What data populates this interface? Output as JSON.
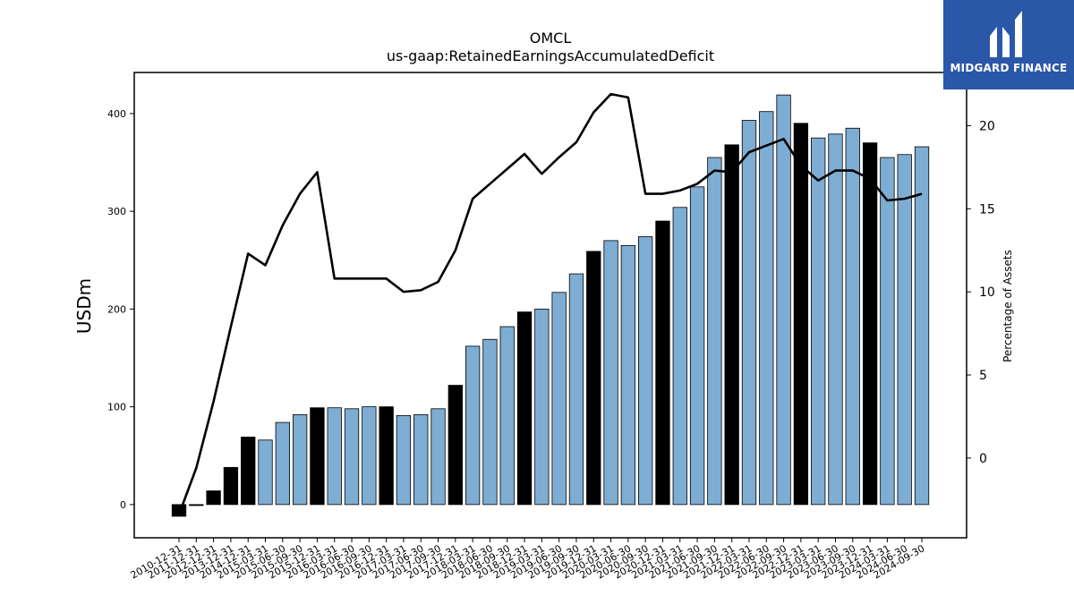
{
  "chart_data": {
    "type": "bar",
    "title": "OMCL",
    "subtitle": "us-gaap:RetainedEarningsAccumulatedDeficit",
    "ylabel": "USDm",
    "y2label": "Percentage of Assets",
    "ylim": [
      -34,
      442
    ],
    "y2lim": [
      -4.8,
      23.2
    ],
    "yticks": [
      0,
      100,
      200,
      300,
      400
    ],
    "y2ticks": [
      0,
      5,
      10,
      15,
      20
    ],
    "grid": false,
    "legend": "none",
    "colors": {
      "bar": "#7eadd3",
      "bar_highlight": "#000000",
      "line": "#000000",
      "frame": "#000000"
    },
    "categories": [
      "2010-12-31",
      "2011-12-31",
      "2012-12-31",
      "2013-12-31",
      "2014-12-31",
      "2015-03-31",
      "2015-06-30",
      "2015-09-30",
      "2015-12-31",
      "2016-03-31",
      "2016-06-30",
      "2016-09-30",
      "2016-12-31",
      "2017-03-31",
      "2017-06-30",
      "2017-09-30",
      "2017-12-31",
      "2018-03-31",
      "2018-06-30",
      "2018-09-30",
      "2018-12-31",
      "2019-03-31",
      "2019-06-30",
      "2019-09-30",
      "2019-12-31",
      "2020-03-31",
      "2020-06-30",
      "2020-09-30",
      "2020-12-31",
      "2021-03-31",
      "2021-06-30",
      "2021-09-30",
      "2021-12-31",
      "2022-03-31",
      "2022-06-30",
      "2022-09-30",
      "2022-12-31",
      "2023-03-31",
      "2023-06-30",
      "2023-09-30",
      "2023-12-31",
      "2024-03-31",
      "2024-06-30",
      "2024-09-30"
    ],
    "series": [
      {
        "type": "bar",
        "values": [
          -12,
          -1,
          14,
          38,
          69,
          66,
          84,
          92,
          99,
          99,
          98,
          100,
          100,
          91,
          92,
          98,
          122,
          162,
          169,
          182,
          197,
          200,
          217,
          236,
          259,
          270,
          265,
          274,
          290,
          304,
          325,
          355,
          368,
          393,
          402,
          419,
          390,
          375,
          379,
          385,
          370,
          355,
          358,
          366
        ],
        "highlight": [
          true,
          true,
          true,
          true,
          true,
          false,
          false,
          false,
          true,
          false,
          false,
          false,
          true,
          false,
          false,
          false,
          true,
          false,
          false,
          false,
          true,
          false,
          false,
          false,
          true,
          false,
          false,
          false,
          true,
          false,
          false,
          false,
          true,
          false,
          false,
          false,
          true,
          false,
          false,
          false,
          true,
          false,
          false,
          false
        ]
      },
      {
        "type": "line",
        "axis": "right",
        "values": [
          -3.4,
          -0.6,
          3.4,
          7.9,
          12.3,
          11.6,
          14.0,
          15.9,
          17.2,
          10.8,
          10.8,
          10.8,
          10.8,
          10.0,
          10.1,
          10.6,
          12.5,
          15.6,
          16.5,
          17.4,
          18.3,
          17.1,
          18.1,
          19.0,
          20.8,
          21.9,
          21.7,
          15.9,
          15.9,
          16.1,
          16.5,
          17.3,
          17.2,
          18.4,
          18.8,
          19.2,
          17.6,
          16.7,
          17.3,
          17.3,
          16.8,
          15.5,
          15.6,
          15.9
        ]
      }
    ]
  },
  "logo": {
    "text": "MIDGARD FINANCE",
    "color": "#2b57a8"
  }
}
